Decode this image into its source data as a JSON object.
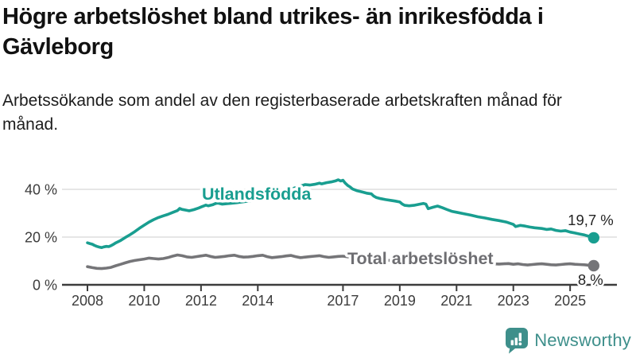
{
  "header": {
    "title": "Högre arbetslöshet bland utrikes- än inrikesfödda i Gävleborg",
    "subtitle": "Arbetssökande som andel av den registerbaserade arbetskraften månad för månad."
  },
  "footer": {
    "brand": "Newsworthy",
    "brand_color": "#3E8F8B",
    "icon": "newsworthy-speech-bubble-bar-chart-icon"
  },
  "colors": {
    "foreign_born_line": "#199E90",
    "total_line": "#757578",
    "total_label": "#6E6E72",
    "grid": "#DEDEDE",
    "axis": "#3C3C3C",
    "tick_label": "#3C3C3C",
    "end_label": "#242424"
  },
  "chart_data": {
    "type": "line",
    "unit": "%",
    "grid": "horizontal-only",
    "legend_position": "inline-on-lines",
    "xlim": [
      2008,
      2025.83
    ],
    "ylim": [
      0,
      46
    ],
    "x_ticks": [
      {
        "year": 2008,
        "label": "2008"
      },
      {
        "year": 2010,
        "label": "2010"
      },
      {
        "year": 2012,
        "label": "2012"
      },
      {
        "year": 2014,
        "label": "2014"
      },
      {
        "year": 2017,
        "label": "2017"
      },
      {
        "year": 2019,
        "label": "2019"
      },
      {
        "year": 2021,
        "label": "2021"
      },
      {
        "year": 2023,
        "label": "2023"
      },
      {
        "year": 2025,
        "label": "2025"
      }
    ],
    "y_ticks": [
      {
        "value": 0,
        "label": "0 %"
      },
      {
        "value": 20,
        "label": "20 %"
      },
      {
        "value": 40,
        "label": "40 %"
      }
    ],
    "series": [
      {
        "name": "Total arbetslöshet",
        "color": "#757578",
        "label_color": "#6E6E72",
        "end_value": 8.0,
        "end_label": "8 %",
        "points": [
          [
            2008.0,
            7.6
          ],
          [
            2008.17,
            7.2
          ],
          [
            2008.33,
            6.9
          ],
          [
            2008.5,
            6.8
          ],
          [
            2008.67,
            7.0
          ],
          [
            2008.83,
            7.3
          ],
          [
            2009.0,
            8.0
          ],
          [
            2009.17,
            8.6
          ],
          [
            2009.33,
            9.2
          ],
          [
            2009.5,
            9.8
          ],
          [
            2009.67,
            10.2
          ],
          [
            2009.83,
            10.5
          ],
          [
            2010.0,
            10.8
          ],
          [
            2010.17,
            11.2
          ],
          [
            2010.33,
            11.0
          ],
          [
            2010.5,
            10.8
          ],
          [
            2010.67,
            11.0
          ],
          [
            2010.83,
            11.4
          ],
          [
            2011.0,
            12.0
          ],
          [
            2011.17,
            12.5
          ],
          [
            2011.33,
            12.2
          ],
          [
            2011.5,
            11.7
          ],
          [
            2011.67,
            11.5
          ],
          [
            2011.83,
            11.8
          ],
          [
            2012.0,
            12.1
          ],
          [
            2012.17,
            12.4
          ],
          [
            2012.33,
            11.9
          ],
          [
            2012.5,
            11.5
          ],
          [
            2012.67,
            11.7
          ],
          [
            2012.83,
            11.9
          ],
          [
            2013.0,
            12.2
          ],
          [
            2013.17,
            12.4
          ],
          [
            2013.33,
            11.9
          ],
          [
            2013.5,
            11.6
          ],
          [
            2013.67,
            11.7
          ],
          [
            2013.83,
            11.9
          ],
          [
            2014.0,
            12.2
          ],
          [
            2014.17,
            12.4
          ],
          [
            2014.33,
            11.8
          ],
          [
            2014.5,
            11.4
          ],
          [
            2014.67,
            11.6
          ],
          [
            2014.83,
            11.8
          ],
          [
            2015.0,
            12.1
          ],
          [
            2015.17,
            12.3
          ],
          [
            2015.33,
            11.8
          ],
          [
            2015.5,
            11.4
          ],
          [
            2015.67,
            11.6
          ],
          [
            2015.83,
            11.8
          ],
          [
            2016.0,
            12.0
          ],
          [
            2016.17,
            12.2
          ],
          [
            2016.33,
            11.8
          ],
          [
            2016.5,
            11.5
          ],
          [
            2016.67,
            11.7
          ],
          [
            2016.83,
            11.9
          ],
          [
            2017.0,
            12.0
          ],
          [
            2017.17,
            11.7
          ],
          [
            2017.33,
            11.4
          ],
          [
            2017.5,
            11.2
          ],
          [
            2017.75,
            11.0
          ],
          [
            2018.0,
            10.8
          ],
          [
            2018.25,
            10.5
          ],
          [
            2018.5,
            10.3
          ],
          [
            2018.75,
            10.1
          ],
          [
            2019.0,
            10.0
          ],
          [
            2019.25,
            9.8
          ],
          [
            2019.5,
            9.7
          ],
          [
            2019.75,
            9.8
          ],
          [
            2020.0,
            10.0
          ],
          [
            2020.25,
            10.8
          ],
          [
            2020.5,
            10.6
          ],
          [
            2020.75,
            10.4
          ],
          [
            2021.0,
            10.2
          ],
          [
            2021.25,
            9.9
          ],
          [
            2021.5,
            9.6
          ],
          [
            2021.75,
            9.3
          ],
          [
            2022.0,
            9.0
          ],
          [
            2022.25,
            8.8
          ],
          [
            2022.5,
            8.7
          ],
          [
            2022.67,
            8.8
          ],
          [
            2022.83,
            8.9
          ],
          [
            2023.0,
            8.6
          ],
          [
            2023.17,
            8.8
          ],
          [
            2023.33,
            8.5
          ],
          [
            2023.5,
            8.3
          ],
          [
            2023.67,
            8.5
          ],
          [
            2023.83,
            8.7
          ],
          [
            2024.0,
            8.8
          ],
          [
            2024.17,
            8.6
          ],
          [
            2024.33,
            8.4
          ],
          [
            2024.5,
            8.3
          ],
          [
            2024.67,
            8.5
          ],
          [
            2024.83,
            8.7
          ],
          [
            2025.0,
            8.8
          ],
          [
            2025.17,
            8.6
          ],
          [
            2025.33,
            8.5
          ],
          [
            2025.5,
            8.4
          ],
          [
            2025.67,
            8.2
          ],
          [
            2025.83,
            8.0
          ]
        ]
      },
      {
        "name": "Utlandsfödda",
        "color": "#199E90",
        "label_color": "#199E90",
        "end_value": 19.7,
        "end_label": "19,7 %",
        "points": [
          [
            2008.0,
            17.6
          ],
          [
            2008.08,
            17.3
          ],
          [
            2008.17,
            17.0
          ],
          [
            2008.25,
            16.5
          ],
          [
            2008.33,
            16.1
          ],
          [
            2008.42,
            15.8
          ],
          [
            2008.5,
            15.6
          ],
          [
            2008.58,
            15.9
          ],
          [
            2008.67,
            16.1
          ],
          [
            2008.75,
            16.0
          ],
          [
            2008.83,
            16.4
          ],
          [
            2008.92,
            17.0
          ],
          [
            2009.0,
            17.6
          ],
          [
            2009.17,
            18.6
          ],
          [
            2009.33,
            19.8
          ],
          [
            2009.5,
            21.0
          ],
          [
            2009.67,
            22.3
          ],
          [
            2009.83,
            23.7
          ],
          [
            2010.0,
            25.0
          ],
          [
            2010.17,
            26.3
          ],
          [
            2010.33,
            27.3
          ],
          [
            2010.5,
            28.2
          ],
          [
            2010.67,
            28.9
          ],
          [
            2010.83,
            29.5
          ],
          [
            2011.0,
            30.3
          ],
          [
            2011.17,
            31.1
          ],
          [
            2011.25,
            32.0
          ],
          [
            2011.33,
            31.6
          ],
          [
            2011.5,
            31.2
          ],
          [
            2011.58,
            31.0
          ],
          [
            2011.75,
            31.5
          ],
          [
            2011.92,
            32.2
          ],
          [
            2012.0,
            32.6
          ],
          [
            2012.17,
            33.4
          ],
          [
            2012.25,
            33.1
          ],
          [
            2012.42,
            33.6
          ],
          [
            2012.5,
            34.0
          ],
          [
            2012.58,
            34.3
          ],
          [
            2012.75,
            33.8
          ],
          [
            2012.92,
            34.0
          ],
          [
            2013.08,
            34.2
          ],
          [
            2013.25,
            34.4
          ],
          [
            2013.5,
            34.8
          ],
          [
            2013.75,
            35.2
          ],
          [
            2014.0,
            35.7
          ],
          [
            2014.25,
            36.4
          ],
          [
            2014.5,
            37.2
          ],
          [
            2014.75,
            38.3
          ],
          [
            2015.0,
            39.3
          ],
          [
            2015.25,
            40.4
          ],
          [
            2015.5,
            41.4
          ],
          [
            2015.67,
            42.0
          ],
          [
            2015.83,
            41.8
          ],
          [
            2016.0,
            42.1
          ],
          [
            2016.17,
            42.6
          ],
          [
            2016.25,
            42.3
          ],
          [
            2016.42,
            42.8
          ],
          [
            2016.58,
            43.1
          ],
          [
            2016.75,
            43.6
          ],
          [
            2016.83,
            44.0
          ],
          [
            2016.92,
            43.5
          ],
          [
            2017.0,
            43.8
          ],
          [
            2017.08,
            42.6
          ],
          [
            2017.17,
            41.6
          ],
          [
            2017.25,
            41.0
          ],
          [
            2017.33,
            40.2
          ],
          [
            2017.5,
            39.4
          ],
          [
            2017.67,
            38.9
          ],
          [
            2017.83,
            38.4
          ],
          [
            2018.0,
            38.1
          ],
          [
            2018.08,
            37.2
          ],
          [
            2018.17,
            36.6
          ],
          [
            2018.33,
            36.1
          ],
          [
            2018.5,
            35.7
          ],
          [
            2018.67,
            35.4
          ],
          [
            2018.83,
            35.1
          ],
          [
            2019.0,
            34.7
          ],
          [
            2019.08,
            33.9
          ],
          [
            2019.17,
            33.3
          ],
          [
            2019.33,
            33.1
          ],
          [
            2019.5,
            33.3
          ],
          [
            2019.67,
            33.7
          ],
          [
            2019.83,
            34.1
          ],
          [
            2019.92,
            33.8
          ],
          [
            2020.0,
            31.9
          ],
          [
            2020.17,
            32.5
          ],
          [
            2020.33,
            33.0
          ],
          [
            2020.5,
            32.3
          ],
          [
            2020.67,
            31.5
          ],
          [
            2020.83,
            30.8
          ],
          [
            2021.0,
            30.4
          ],
          [
            2021.25,
            29.8
          ],
          [
            2021.5,
            29.2
          ],
          [
            2021.75,
            28.5
          ],
          [
            2022.0,
            28.0
          ],
          [
            2022.25,
            27.4
          ],
          [
            2022.5,
            26.9
          ],
          [
            2022.75,
            26.3
          ],
          [
            2023.0,
            25.3
          ],
          [
            2023.08,
            24.4
          ],
          [
            2023.25,
            24.9
          ],
          [
            2023.42,
            24.6
          ],
          [
            2023.58,
            24.2
          ],
          [
            2023.75,
            23.9
          ],
          [
            2024.0,
            23.6
          ],
          [
            2024.17,
            23.2
          ],
          [
            2024.33,
            23.4
          ],
          [
            2024.5,
            22.8
          ],
          [
            2024.67,
            22.5
          ],
          [
            2024.83,
            22.7
          ],
          [
            2025.0,
            22.1
          ],
          [
            2025.17,
            21.7
          ],
          [
            2025.33,
            21.3
          ],
          [
            2025.5,
            20.9
          ],
          [
            2025.67,
            20.3
          ],
          [
            2025.83,
            19.7
          ]
        ]
      }
    ]
  }
}
